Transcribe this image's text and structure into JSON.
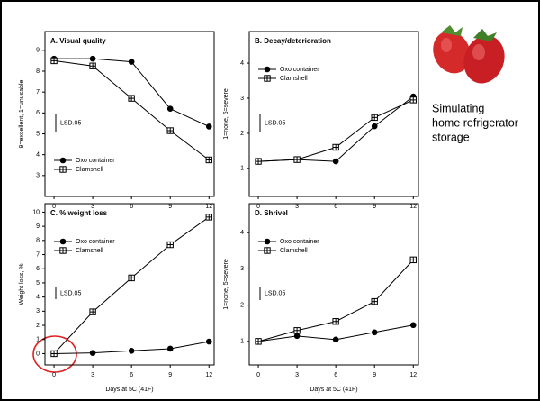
{
  "caption": [
    "Simulating",
    "home refrigerator",
    "storage"
  ],
  "chart_data": [
    {
      "type": "line",
      "title": "A. Visual quality",
      "ylabel": "9=excellent, 1=unusable",
      "x": [
        0,
        3,
        6,
        9,
        12
      ],
      "xlim": [
        -0.7,
        12.4
      ],
      "xticks": [
        0,
        3,
        6,
        9,
        12
      ],
      "ylim": [
        2,
        9.9
      ],
      "yticks": [
        3,
        4,
        5,
        6,
        7,
        8,
        9
      ],
      "legend": "lower left",
      "lsd": 0.85,
      "lsd_label": "LSD.05",
      "series": [
        {
          "name": "Oxo container",
          "color": "#000000",
          "marker": "filled-circle",
          "values": [
            8.6,
            8.6,
            8.45,
            6.2,
            5.35
          ]
        },
        {
          "name": "Clamshell",
          "color": "#000000",
          "marker": "boxed-plus",
          "values": [
            8.5,
            8.25,
            6.7,
            5.15,
            3.75
          ]
        }
      ]
    },
    {
      "type": "line",
      "title": "B. Decay/deterioration",
      "ylabel": "1=none, 5=severe",
      "x": [
        0,
        3,
        6,
        9,
        12
      ],
      "xlim": [
        -0.7,
        12.4
      ],
      "xticks": [
        0,
        3,
        6,
        9,
        12
      ],
      "ylim": [
        0.2,
        4.9
      ],
      "yticks": [
        1,
        2,
        3,
        4
      ],
      "legend": "upper left",
      "lsd": 0.53,
      "lsd_label": "LSD.05",
      "series": [
        {
          "name": "Oxo container",
          "color": "#000000",
          "marker": "filled-circle",
          "values": [
            1.2,
            1.25,
            1.2,
            2.2,
            3.05
          ]
        },
        {
          "name": "Clamshell",
          "color": "#000000",
          "marker": "boxed-plus",
          "values": [
            1.2,
            1.25,
            1.6,
            2.45,
            2.95
          ]
        }
      ]
    },
    {
      "type": "line",
      "title": "C. % weight loss",
      "ylabel": "Weight loss, %",
      "xlabel": "Days at 5C (41F)",
      "x": [
        0,
        3,
        6,
        9,
        12
      ],
      "xlim": [
        -0.7,
        12.4
      ],
      "xticks": [
        0,
        3,
        6,
        9,
        12
      ],
      "ylim": [
        -0.8,
        10.6
      ],
      "yticks": [
        0,
        1,
        2,
        3,
        4,
        5,
        6,
        7,
        8,
        9,
        10
      ],
      "legend": "upper left",
      "lsd": 0.83,
      "lsd_label": "LSD.05",
      "series": [
        {
          "name": "Oxo container",
          "color": "#000000",
          "marker": "filled-circle",
          "values": [
            0,
            0.05,
            0.2,
            0.35,
            0.85
          ]
        },
        {
          "name": "Clamshell",
          "color": "#000000",
          "marker": "boxed-plus",
          "values": [
            0,
            2.95,
            5.35,
            7.7,
            9.65
          ]
        }
      ]
    },
    {
      "type": "line",
      "title": "D. Shrivel",
      "ylabel": "1=none, 5=severe",
      "xlabel": "Days at 5C (41F)",
      "x": [
        0,
        3,
        6,
        9,
        12
      ],
      "xlim": [
        -0.7,
        12.4
      ],
      "xticks": [
        0,
        3,
        6,
        9,
        12
      ],
      "ylim": [
        0.35,
        4.8
      ],
      "yticks": [
        1,
        2,
        3,
        4
      ],
      "legend": "upper left",
      "lsd": 0.37,
      "lsd_label": "LSD.05",
      "series": [
        {
          "name": "Oxo container",
          "color": "#000000",
          "marker": "filled-circle",
          "values": [
            1,
            1.15,
            1.05,
            1.25,
            1.45
          ]
        },
        {
          "name": "Clamshell",
          "color": "#000000",
          "marker": "boxed-plus",
          "values": [
            1,
            1.3,
            1.55,
            2.1,
            3.25
          ]
        }
      ]
    }
  ]
}
